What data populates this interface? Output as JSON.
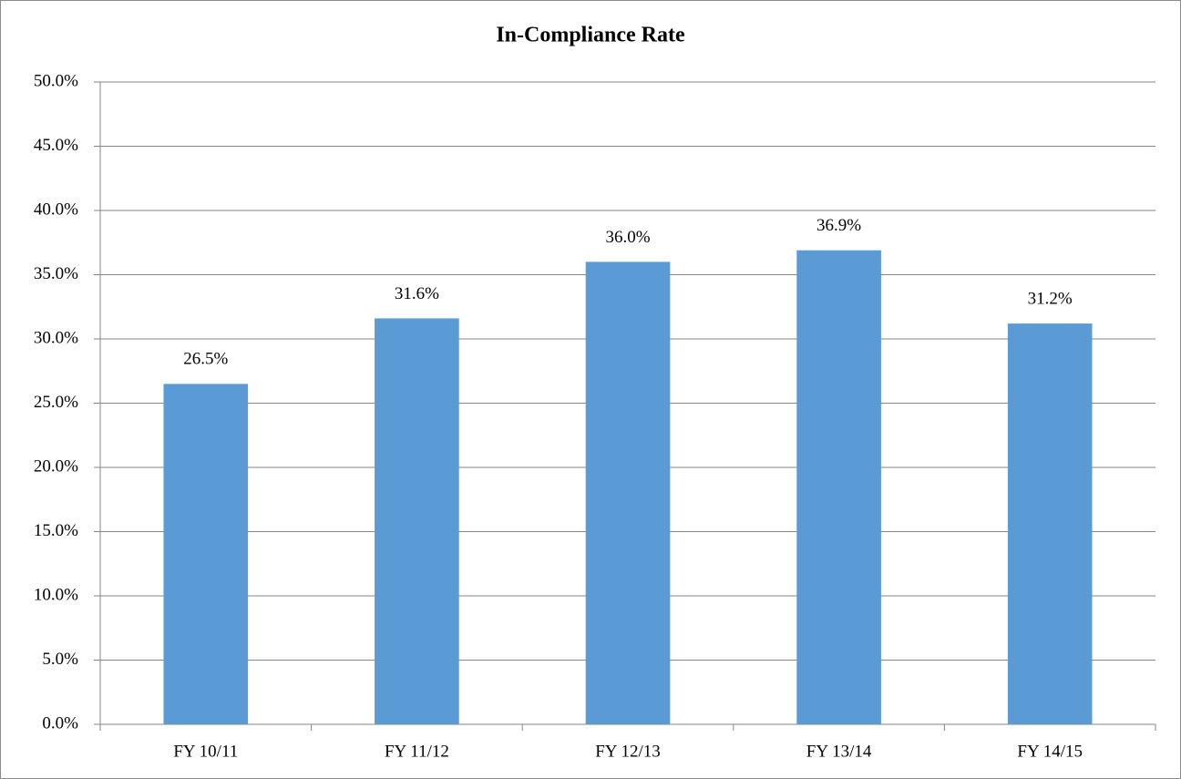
{
  "chart_data": {
    "type": "bar",
    "title": "In-Compliance Rate",
    "categories": [
      "FY 10/11",
      "FY 11/12",
      "FY 12/13",
      "FY 13/14",
      "FY 14/15"
    ],
    "values": [
      26.5,
      31.6,
      36.0,
      36.9,
      31.2
    ],
    "value_labels": [
      "26.5%",
      "31.6%",
      "36.0%",
      "36.9%",
      "31.2%"
    ],
    "color": "#5b9bd5",
    "ylim": [
      0,
      50
    ],
    "yticks": [
      {
        "value": 0,
        "label": "0.0%"
      },
      {
        "value": 5,
        "label": "5.0%"
      },
      {
        "value": 10,
        "label": "10.0%"
      },
      {
        "value": 15,
        "label": "15.0%"
      },
      {
        "value": 20,
        "label": "20.0%"
      },
      {
        "value": 25,
        "label": "25.0%"
      },
      {
        "value": 30,
        "label": "30.0%"
      },
      {
        "value": 35,
        "label": "35.0%"
      },
      {
        "value": 40,
        "label": "40.0%"
      },
      {
        "value": 45,
        "label": "45.0%"
      },
      {
        "value": 50,
        "label": "50.0%"
      }
    ],
    "grid": true
  }
}
